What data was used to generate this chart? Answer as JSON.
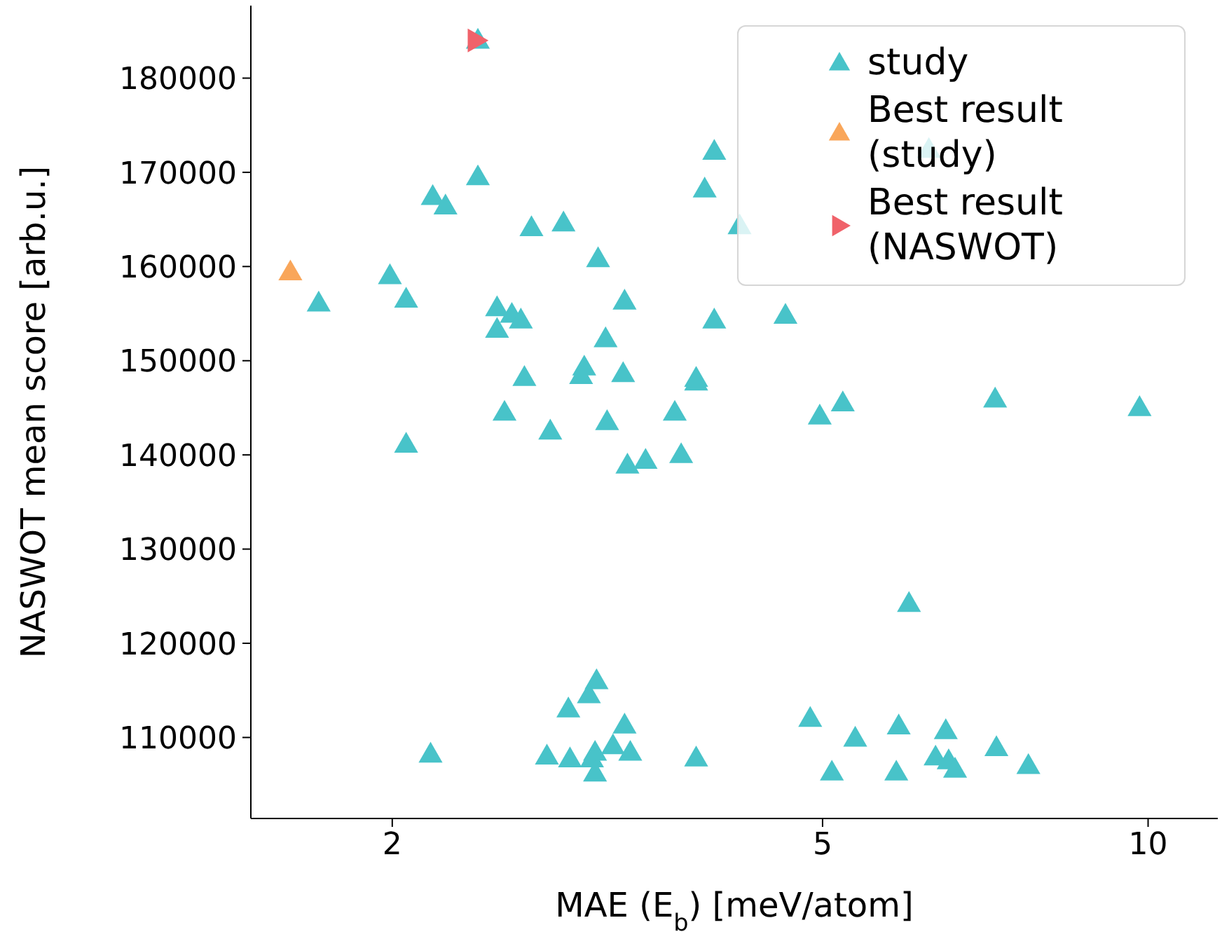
{
  "chart_data": {
    "type": "scatter",
    "xlabel": "MAE (E$_{b}$) [meV/atom]",
    "ylabel": "NASWOT mean score [arb.u.]",
    "log": "x",
    "xlim": [
      1.48,
      11.6
    ],
    "xticks": [
      2,
      5,
      10
    ],
    "ylim": [
      101400,
      187700
    ],
    "yticks": [
      110000,
      120000,
      130000,
      140000,
      150000,
      160000,
      170000,
      180000
    ],
    "legend": "top right",
    "marker": "triangle",
    "series": [
      {
        "name": "study",
        "color": "#48c3c9",
        "x": [
          2.4,
          1.71,
          1.99,
          2.06,
          2.06,
          2.18,
          2.24,
          2.4,
          2.5,
          2.5,
          2.58,
          2.63,
          2.69,
          2.88,
          3.1,
          3.28,
          3.15,
          2.65,
          3.01,
          2.99,
          3.27,
          3.82,
          3.82,
          2.54,
          3.16,
          3.65,
          3.97,
          3.89,
          4.19,
          3.97,
          4.62,
          6.27,
          4.97,
          5.22,
          7.22,
          9.82,
          2.8,
          3.3,
          3.43,
          3.7,
          6.01,
          3.09,
          3.04,
          2.91,
          3.28,
          2.17,
          2.78,
          2.92,
          3.08,
          3.06,
          3.2,
          3.32,
          3.08,
          3.82,
          4.87,
          5.36,
          5.88,
          6.5,
          5.1,
          5.85,
          6.36,
          6.54,
          6.63,
          7.24,
          7.75
        ],
        "values": [
          184000,
          156100,
          159000,
          156500,
          141100,
          167400,
          166400,
          169500,
          155600,
          153300,
          154900,
          154300,
          164100,
          164600,
          160800,
          156300,
          152300,
          148200,
          149300,
          148400,
          148600,
          148100,
          147700,
          144500,
          143500,
          144500,
          172200,
          168200,
          164300,
          154300,
          154800,
          172400,
          144100,
          145500,
          145900,
          145000,
          142500,
          138900,
          139400,
          140000,
          124200,
          116000,
          114500,
          113000,
          111300,
          108200,
          108000,
          107700,
          108400,
          107700,
          109100,
          108400,
          106200,
          107800,
          112000,
          109900,
          111200,
          110700,
          106300,
          106300,
          107900,
          107500,
          106600,
          108900,
          107000
        ]
      },
      {
        "name": "Best result (study)",
        "color": "#f9a65a",
        "x": [
          1.61
        ],
        "values": [
          159400
        ]
      },
      {
        "name": "Best result (NASWOT)",
        "color": "#f0626a",
        "marker": "triangle-right",
        "x": [
          2.39
        ],
        "values": [
          184000
        ]
      }
    ]
  }
}
